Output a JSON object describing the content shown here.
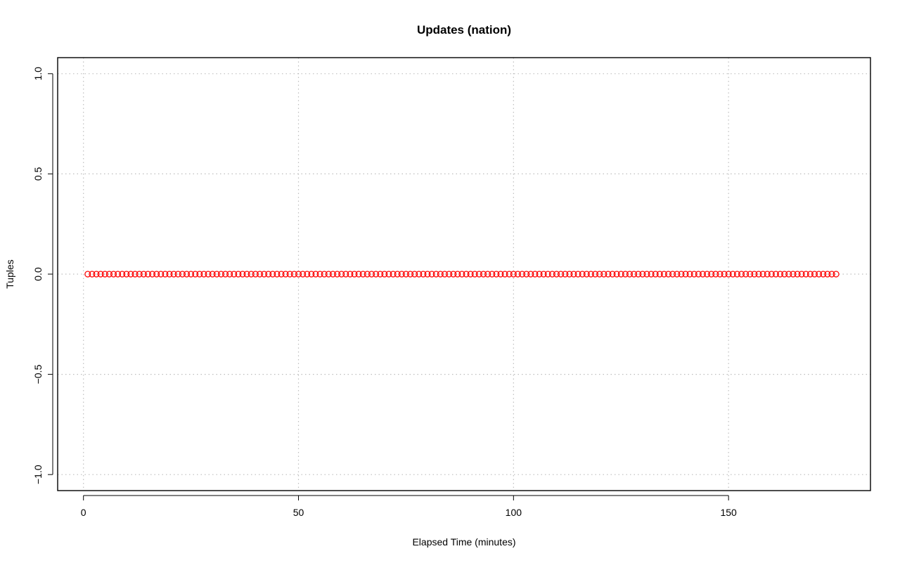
{
  "chart_data": {
    "type": "scatter",
    "title": "Updates (nation)",
    "xlabel": "Elapsed Time (minutes)",
    "ylabel": "Tuples",
    "xlim": [
      -6,
      183
    ],
    "ylim": [
      -1.08,
      1.08
    ],
    "xticks": [
      0,
      50,
      100,
      150
    ],
    "xtick_labels": [
      "0",
      "50",
      "100",
      "150"
    ],
    "yticks": [
      -1.0,
      -0.5,
      0.0,
      0.5,
      1.0
    ],
    "ytick_labels": [
      "−1.0",
      "−0.5",
      "0.0",
      "0.5",
      "1.0"
    ],
    "grid": true,
    "legend": "none",
    "marker": "open-circle",
    "colors": {
      "series": "#ff0000",
      "grid": "#bebebe",
      "axis": "#000000"
    },
    "series": [
      {
        "x_start": 1,
        "x_end": 175,
        "x_step": 1,
        "y": 0
      }
    ]
  }
}
